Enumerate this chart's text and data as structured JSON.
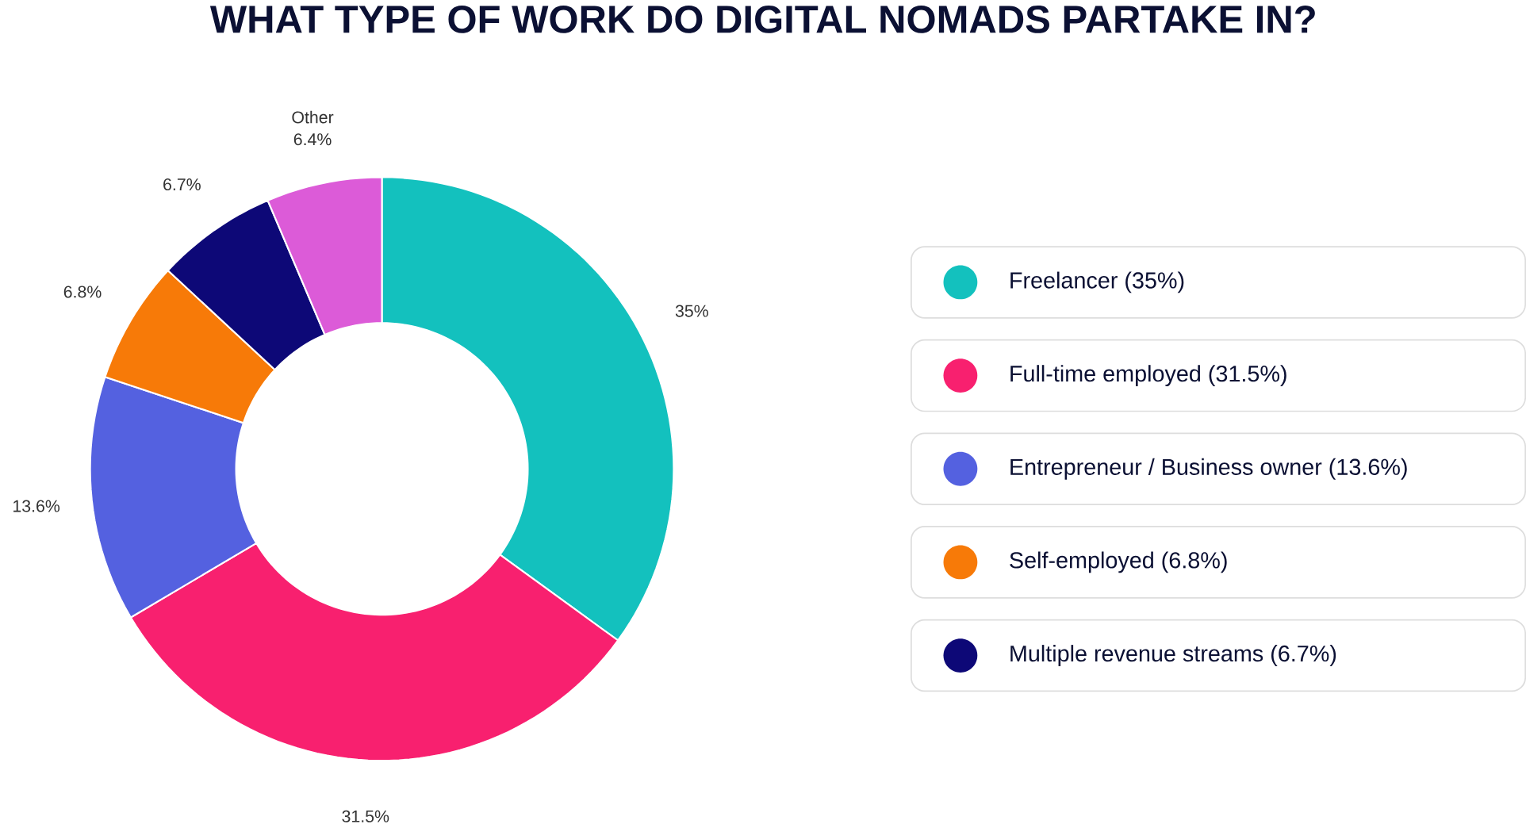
{
  "chart_data": {
    "type": "donut",
    "title": "WHAT TYPE OF WORK DO DIGITAL NOMADS PARTAKE IN?",
    "categories": [
      "Freelancer (35%)",
      "Full-time employed (31.5%)",
      "Entrepreneur / Business owner (13.6%)",
      "Self-employed (6.8%)",
      "Multiple revenue streams (6.7%)",
      null
    ],
    "values": [
      35,
      31.5,
      13.6,
      6.8,
      6.7,
      6.4
    ],
    "colors": [
      "#13c1be",
      "#f8206f",
      "#5461e0",
      "#f77a08",
      "#0d0877",
      "#dc5bd8"
    ],
    "value_labels": [
      "35%",
      "31.5%",
      "13.6%",
      "6.8%",
      "6.7%",
      "Other 6.4%"
    ],
    "legend": "right"
  }
}
